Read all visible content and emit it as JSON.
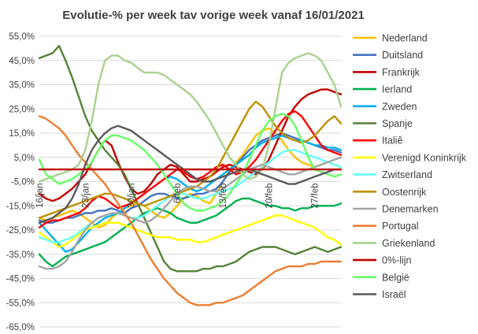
{
  "chart_data": {
    "type": "line",
    "title": "Evolutie-% per week tav vorige week vanaf 16/01/2021",
    "xlabel": "",
    "ylabel": "",
    "ylim": [
      -65,
      55
    ],
    "yticks": [
      "55,0%",
      "45,0%",
      "35,0%",
      "25,0%",
      "15,0%",
      "5,0%",
      "-5,0%",
      "-15,0%",
      "-25,0%",
      "-35,0%",
      "-45,0%",
      "-55,0%",
      "-65,0%"
    ],
    "x_start": "16/jan",
    "x_end": "2/mrt",
    "xtick_labels": [
      "16/jan",
      "23/jan",
      "30/jan",
      "6/feb",
      "13/feb",
      "20/feb",
      "27/feb"
    ],
    "grid": "horizontal",
    "legend_position": "right",
    "series": [
      {
        "name": "Nederland",
        "color": "#FFC000",
        "values": [
          -20,
          -21,
          -20,
          -19,
          -18,
          -17,
          -18,
          -20,
          -22,
          -24,
          -23,
          -20,
          -18,
          -16,
          -15,
          -14,
          -15,
          -17,
          -19,
          -20,
          -18,
          -15,
          -12,
          -10,
          -11,
          -13,
          -14,
          -10,
          -5,
          0,
          3,
          6,
          10,
          14,
          16,
          17,
          15,
          12,
          8,
          5,
          3,
          2,
          1,
          2,
          3,
          2,
          1
        ]
      },
      {
        "name": "Duitsland",
        "color": "#4472C4",
        "values": [
          -21,
          -22,
          -22,
          -21,
          -20,
          -20,
          -19,
          -18,
          -18,
          -17,
          -17,
          -16,
          -17,
          -18,
          -16,
          -15,
          -13,
          -11,
          -10,
          -10,
          -11,
          -12,
          -12,
          -11,
          -10,
          -10,
          -9,
          -8,
          -5,
          -1,
          2,
          5,
          8,
          10,
          12,
          13,
          14,
          15,
          14,
          13,
          12,
          11,
          10,
          9,
          8,
          8,
          7
        ]
      },
      {
        "name": "Frankrijk",
        "color": "#C00000",
        "values": [
          -10,
          -12,
          -13,
          -12,
          -10,
          -8,
          -5,
          -2,
          3,
          8,
          12,
          10,
          3,
          -3,
          -8,
          -10,
          -9,
          -6,
          -2,
          0,
          2,
          1,
          -2,
          -5,
          -5,
          -4,
          -3,
          -1,
          1,
          2,
          1,
          0,
          -1,
          -2,
          0,
          4,
          10,
          16,
          22,
          26,
          29,
          31,
          32,
          33,
          33,
          32,
          31
        ]
      },
      {
        "name": "Ierland",
        "color": "#00B050",
        "values": [
          -35,
          -38,
          -40,
          -38,
          -36,
          -35,
          -34,
          -33,
          -32,
          -31,
          -30,
          -28,
          -26,
          -24,
          -22,
          -20,
          -18,
          -17,
          -16,
          -17,
          -18,
          -20,
          -21,
          -22,
          -22,
          -21,
          -20,
          -19,
          -17,
          -15,
          -13,
          -12,
          -12,
          -13,
          -14,
          -15,
          -15,
          -16,
          -16,
          -17,
          -16,
          -16,
          -15,
          -15,
          -15,
          -15,
          -14
        ]
      },
      {
        "name": "Zweden",
        "color": "#00B0F0",
        "values": [
          -22,
          -25,
          -28,
          -31,
          -34,
          -33,
          -30,
          -27,
          -24,
          -22,
          -20,
          -19,
          -18,
          -16,
          -14,
          -12,
          -10,
          -8,
          -6,
          -4,
          -3,
          -4,
          -6,
          -8,
          -9,
          -8,
          -6,
          -4,
          -2,
          0,
          2,
          4,
          6,
          9,
          11,
          12,
          13,
          14,
          13,
          12,
          12,
          11,
          10,
          10,
          9,
          9,
          8
        ]
      },
      {
        "name": "Spanje",
        "color": "#548235",
        "values": [
          46,
          47,
          48,
          51,
          45,
          38,
          30,
          22,
          16,
          12,
          8,
          5,
          2,
          -2,
          -8,
          -14,
          -20,
          -26,
          -32,
          -38,
          -41,
          -42,
          -42,
          -42,
          -42,
          -41,
          -41,
          -40,
          -40,
          -39,
          -38,
          -36,
          -34,
          -33,
          -32,
          -32,
          -32,
          -33,
          -34,
          -35,
          -34,
          -33,
          -32,
          -33,
          -34,
          -33,
          -32
        ]
      },
      {
        "name": "Italiê",
        "color": "#FF0000",
        "values": [
          -24,
          -22,
          -21,
          -21,
          -20,
          -19,
          -18,
          -16,
          -13,
          -11,
          -12,
          -14,
          -16,
          -15,
          -14,
          -12,
          -10,
          -8,
          -6,
          -4,
          -2,
          0,
          -1,
          -3,
          -4,
          -3,
          -1,
          1,
          2,
          0,
          -2,
          -1,
          1,
          4,
          8,
          12,
          16,
          20,
          23,
          24,
          22,
          18,
          14,
          10,
          8,
          7,
          6
        ]
      },
      {
        "name": "Verenigd Koninkrijk",
        "color": "#FFFF00",
        "values": [
          -26,
          -28,
          -30,
          -32,
          -31,
          -29,
          -27,
          -25,
          -24,
          -23,
          -22,
          -22,
          -22,
          -23,
          -24,
          -25,
          -26,
          -27,
          -28,
          -28,
          -28,
          -29,
          -29,
          -29,
          -30,
          -30,
          -29,
          -28,
          -27,
          -26,
          -25,
          -24,
          -23,
          -22,
          -21,
          -20,
          -19,
          -19,
          -20,
          -21,
          -22,
          -23,
          -24,
          -26,
          -28,
          -29,
          -31
        ]
      },
      {
        "name": "Zwitserland",
        "color": "#66FFFF",
        "values": [
          -28,
          -29,
          -30,
          -30,
          -29,
          -28,
          -26,
          -24,
          -22,
          -20,
          -19,
          -18,
          -18,
          -19,
          -20,
          -20,
          -19,
          -17,
          -15,
          -13,
          -11,
          -10,
          -10,
          -11,
          -12,
          -12,
          -11,
          -10,
          -9,
          -8,
          -7,
          -5,
          -3,
          -1,
          1,
          3,
          5,
          7,
          8,
          8,
          7,
          6,
          5,
          4,
          3,
          2,
          1
        ]
      },
      {
        "name": "Oostenrijk",
        "color": "#BF9000",
        "values": [
          -20,
          -19,
          -18,
          -17,
          -16,
          -15,
          -14,
          -13,
          -12,
          -11,
          -10,
          -10,
          -11,
          -12,
          -13,
          -14,
          -15,
          -14,
          -13,
          -12,
          -11,
          -10,
          -9,
          -8,
          -7,
          -5,
          -3,
          0,
          5,
          10,
          15,
          20,
          25,
          28,
          26,
          22,
          18,
          15,
          13,
          12,
          11,
          12,
          14,
          17,
          20,
          22,
          19
        ]
      },
      {
        "name": "Denemarken",
        "color": "#A5A5A5",
        "values": [
          -40,
          -41,
          -41,
          -40,
          -38,
          -34,
          -29,
          -25,
          -22,
          -20,
          -19,
          -18,
          -18,
          -19,
          -20,
          -21,
          -22,
          -21,
          -19,
          -16,
          -13,
          -10,
          -8,
          -7,
          -7,
          -8,
          -9,
          -9,
          -8,
          -6,
          -4,
          -2,
          0,
          1,
          2,
          1,
          0,
          -1,
          -2,
          -2,
          -1,
          0,
          1,
          2,
          3,
          4,
          5
        ]
      },
      {
        "name": "Portugal",
        "color": "#ED7D31",
        "values": [
          22,
          21,
          19,
          17,
          14,
          10,
          6,
          3,
          0,
          -3,
          -6,
          -10,
          -14,
          -18,
          -22,
          -27,
          -32,
          -37,
          -41,
          -45,
          -48,
          -51,
          -53,
          -55,
          -56,
          -56,
          -56,
          -55,
          -55,
          -54,
          -53,
          -52,
          -50,
          -48,
          -46,
          -44,
          -42,
          -41,
          -40,
          -40,
          -40,
          -39,
          -39,
          -38,
          -38,
          -38,
          -38
        ]
      },
      {
        "name": "Griekenland",
        "color": "#A9D18E",
        "values": [
          -5,
          -4,
          -3,
          -2,
          -1,
          0,
          2,
          8,
          20,
          35,
          45,
          47,
          47,
          45,
          44,
          42,
          40,
          40,
          40,
          39,
          37,
          35,
          33,
          31,
          28,
          24,
          20,
          15,
          10,
          5,
          2,
          -2,
          -4,
          -3,
          0,
          10,
          25,
          40,
          44,
          46,
          47,
          48,
          47,
          45,
          40,
          35,
          26
        ]
      },
      {
        "name": "0%-lijn",
        "color": "#C00000",
        "values": [
          0,
          0,
          0,
          0,
          0,
          0,
          0,
          0,
          0,
          0,
          0,
          0,
          0,
          0,
          0,
          0,
          0,
          0,
          0,
          0,
          0,
          0,
          0,
          0,
          0,
          0,
          0,
          0,
          0,
          0,
          0,
          0,
          0,
          0,
          0,
          0,
          0,
          0,
          0,
          0,
          0,
          0,
          0,
          0,
          0,
          0,
          0
        ]
      },
      {
        "name": "België",
        "color": "#66FF66",
        "values": [
          4,
          -2,
          -4,
          -6,
          -5,
          -4,
          -2,
          0,
          3,
          8,
          12,
          14,
          14,
          13,
          12,
          10,
          8,
          5,
          2,
          -2,
          -6,
          -10,
          -14,
          -16,
          -17,
          -17,
          -16,
          -15,
          -13,
          -10,
          -6,
          -2,
          4,
          10,
          16,
          20,
          22,
          23,
          22,
          18,
          12,
          5,
          0,
          -1,
          -2,
          -3,
          -2
        ]
      },
      {
        "name": "Israël",
        "color": "#595959",
        "values": [
          -22,
          -21,
          -20,
          -18,
          -16,
          -12,
          -6,
          2,
          8,
          12,
          15,
          17,
          18,
          17,
          16,
          14,
          12,
          10,
          8,
          6,
          4,
          2,
          0,
          -2,
          -4,
          -5,
          -5,
          -4,
          -3,
          -2,
          -1,
          0,
          0,
          -1,
          -2,
          -3,
          -4,
          -5,
          -6,
          -6,
          -5,
          -4,
          -3,
          -2,
          -1,
          0,
          0
        ]
      }
    ]
  }
}
